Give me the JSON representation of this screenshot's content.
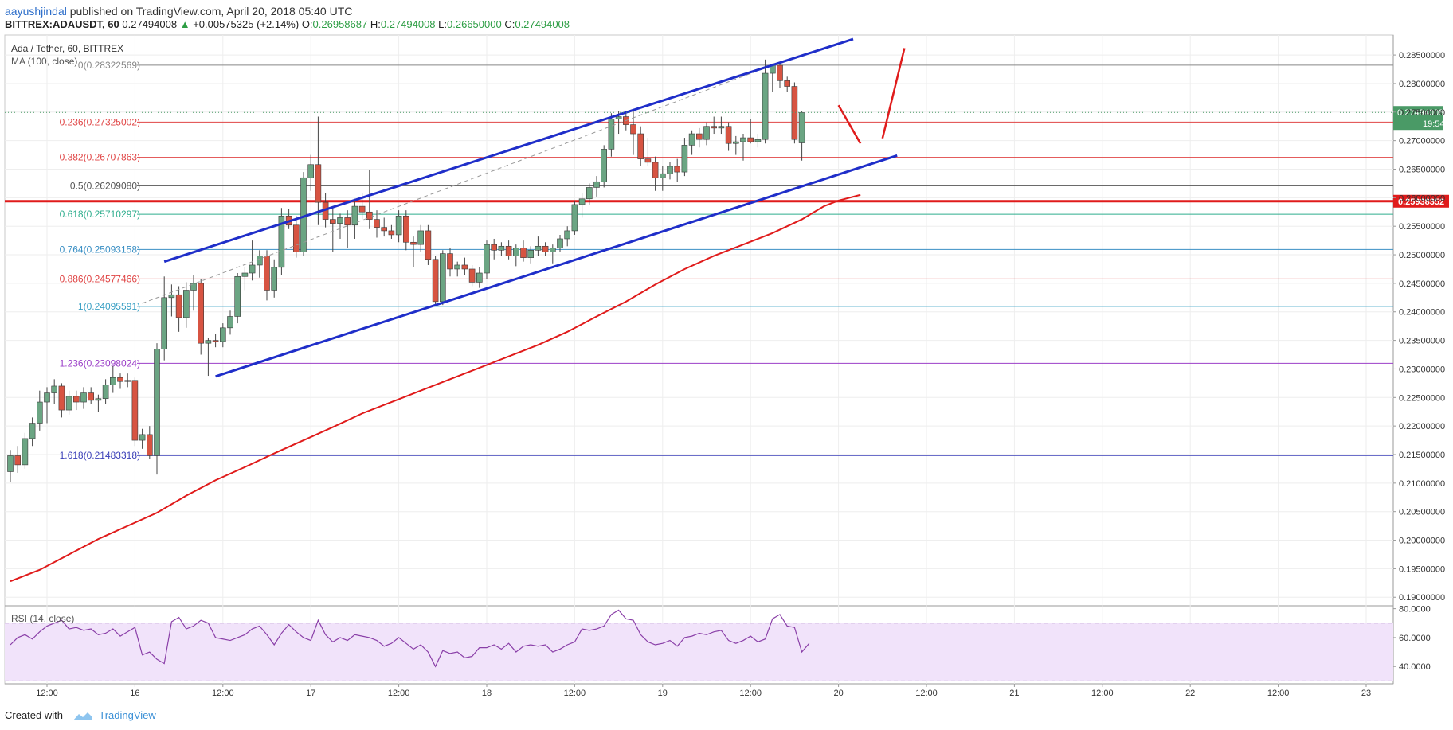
{
  "header": {
    "author": "aayushjindal",
    "published_text": "published on TradingView.com, April 20, 2018 05:40 UTC",
    "symbol": "BITTREX:ADAUSDT, 60",
    "last": "0.27494008",
    "change": "+0.00575325 (+2.14%)",
    "o_label": "O:",
    "o_value": "0.26958687",
    "h_label": "H:",
    "h_value": "0.27494008",
    "l_label": "L:",
    "l_value": "0.26650000",
    "c_label": "C:",
    "c_value": "0.27494008"
  },
  "chart_data": {
    "type": "candlestick",
    "title": "Ada / Tether, 60, BITTREX",
    "indicator_label": "MA (100, close)",
    "ylim": [
      0.1885,
      0.2885
    ],
    "price_ticks": [
      0.285,
      0.28,
      0.275,
      0.27,
      0.265,
      0.26,
      0.255,
      0.25,
      0.245,
      0.24,
      0.235,
      0.23,
      0.225,
      0.22,
      0.215,
      0.21,
      0.205,
      0.2,
      0.195,
      0.19
    ],
    "price_tick_labels": [
      "0.28500000",
      "0.28000000",
      "0.27500000",
      "0.27000000",
      "0.26500000",
      "0.26000000",
      "0.25500000",
      "0.25000000",
      "0.24500000",
      "0.24000000",
      "0.23500000",
      "0.23000000",
      "0.22500000",
      "0.22000000",
      "0.21500000",
      "0.21000000",
      "0.20500000",
      "0.20000000",
      "0.19500000",
      "0.19000000"
    ],
    "x_range": [
      0,
      180
    ],
    "time_ticks": [
      {
        "x": 5,
        "label": "12:00"
      },
      {
        "x": 17,
        "label": "16"
      },
      {
        "x": 29,
        "label": "12:00"
      },
      {
        "x": 41,
        "label": "17"
      },
      {
        "x": 53,
        "label": "12:00"
      },
      {
        "x": 65,
        "label": "18"
      },
      {
        "x": 77,
        "label": "12:00"
      },
      {
        "x": 89,
        "label": "19"
      },
      {
        "x": 101,
        "label": "12:00"
      },
      {
        "x": 113,
        "label": "20"
      },
      {
        "x": 125,
        "label": "12:00"
      },
      {
        "x": 137,
        "label": "21"
      },
      {
        "x": 149,
        "label": "12:00"
      },
      {
        "x": 161,
        "label": "22"
      },
      {
        "x": 173,
        "label": "12:00"
      },
      {
        "x": 185,
        "label": "23"
      }
    ],
    "fib_levels": [
      {
        "ratio": "0",
        "value": 0.28322569,
        "label": "0(0.28322569)",
        "color": "#888888"
      },
      {
        "ratio": "0.236",
        "value": 0.27325002,
        "label": "0.236(0.27325002)",
        "color": "#e04545"
      },
      {
        "ratio": "0.382",
        "value": 0.26707863,
        "label": "0.382(0.26707863)",
        "color": "#e04545"
      },
      {
        "ratio": "0.5",
        "value": 0.2620908,
        "label": "0.5(0.26209080)",
        "color": "#555555"
      },
      {
        "ratio": "0.618",
        "value": 0.25710297,
        "label": "0.618(0.25710297)",
        "color": "#2fae8e"
      },
      {
        "ratio": "0.764",
        "value": 0.25093158,
        "label": "0.764(0.25093158)",
        "color": "#3a8fc4"
      },
      {
        "ratio": "0.886",
        "value": 0.24577466,
        "label": "0.886(0.24577466)",
        "color": "#e04545"
      },
      {
        "ratio": "1",
        "value": 0.24095591,
        "label": "1(0.24095591)",
        "color": "#3aa0c4"
      },
      {
        "ratio": "1.236",
        "value": 0.23098024,
        "label": "1.236(0.23098024)",
        "color": "#9b3fc8"
      },
      {
        "ratio": "1.618",
        "value": 0.21483318,
        "label": "1.618(0.21483318)",
        "color": "#3a3fb8"
      }
    ],
    "support_line": {
      "value": 0.25938352,
      "label": "0.25938352",
      "color": "#e01b1b"
    },
    "last_price_badge": {
      "value": 0.27494008,
      "label": "0.27494008",
      "time": "19:54",
      "color": "#4a9a66"
    },
    "channel_lines": [
      {
        "x1": 21,
        "y1": 0.2488,
        "x2": 115,
        "y2": 0.2878
      },
      {
        "x1": 28,
        "y1": 0.2287,
        "x2": 121,
        "y2": 0.2674
      }
    ],
    "projection_lines": [
      {
        "x1": 113,
        "y1": 0.2762,
        "x2": 116,
        "y2": 0.2695
      },
      {
        "x1": 119,
        "y1": 0.2704,
        "x2": 122,
        "y2": 0.2862
      }
    ],
    "dashed_line": {
      "x1": 18,
      "y1": 0.2415,
      "x2": 105,
      "y2": 0.2837
    },
    "candles": [
      [
        0.212,
        0.2158,
        0.2102,
        0.2148
      ],
      [
        0.2148,
        0.2165,
        0.2118,
        0.2132
      ],
      [
        0.2132,
        0.2188,
        0.2125,
        0.2178
      ],
      [
        0.2178,
        0.2215,
        0.2165,
        0.2205
      ],
      [
        0.2205,
        0.2262,
        0.2192,
        0.2242
      ],
      [
        0.2242,
        0.2268,
        0.2205,
        0.2258
      ],
      [
        0.2258,
        0.2282,
        0.2238,
        0.227
      ],
      [
        0.227,
        0.2275,
        0.2215,
        0.2228
      ],
      [
        0.2228,
        0.2262,
        0.222,
        0.2252
      ],
      [
        0.2252,
        0.2262,
        0.2228,
        0.2242
      ],
      [
        0.2242,
        0.2268,
        0.223,
        0.2258
      ],
      [
        0.2258,
        0.2268,
        0.2238,
        0.2245
      ],
      [
        0.2245,
        0.2255,
        0.2225,
        0.2248
      ],
      [
        0.2248,
        0.2282,
        0.2238,
        0.2272
      ],
      [
        0.2272,
        0.2305,
        0.2258,
        0.2285
      ],
      [
        0.2285,
        0.2292,
        0.2265,
        0.2278
      ],
      [
        0.2278,
        0.2292,
        0.2268,
        0.228
      ],
      [
        0.228,
        0.2285,
        0.2165,
        0.2175
      ],
      [
        0.2175,
        0.2195,
        0.216,
        0.2185
      ],
      [
        0.2185,
        0.22,
        0.2142,
        0.2148
      ],
      [
        0.2148,
        0.2345,
        0.2115,
        0.2335
      ],
      [
        0.2335,
        0.2462,
        0.2315,
        0.2425
      ],
      [
        0.2425,
        0.2448,
        0.2392,
        0.243
      ],
      [
        0.243,
        0.2445,
        0.2365,
        0.239
      ],
      [
        0.239,
        0.2452,
        0.2372,
        0.2438
      ],
      [
        0.2438,
        0.2465,
        0.2402,
        0.245
      ],
      [
        0.245,
        0.2458,
        0.2325,
        0.2345
      ],
      [
        0.2345,
        0.2355,
        0.2288,
        0.235
      ],
      [
        0.235,
        0.2362,
        0.2338,
        0.2348
      ],
      [
        0.2348,
        0.238,
        0.2338,
        0.2372
      ],
      [
        0.2372,
        0.2402,
        0.236,
        0.2392
      ],
      [
        0.2392,
        0.2468,
        0.238,
        0.2462
      ],
      [
        0.2462,
        0.2478,
        0.2438,
        0.2468
      ],
      [
        0.2468,
        0.2525,
        0.2455,
        0.2482
      ],
      [
        0.2482,
        0.2508,
        0.246,
        0.2498
      ],
      [
        0.2498,
        0.2508,
        0.242,
        0.2438
      ],
      [
        0.2438,
        0.2492,
        0.2425,
        0.2478
      ],
      [
        0.2478,
        0.2582,
        0.2465,
        0.2568
      ],
      [
        0.2568,
        0.258,
        0.2545,
        0.2552
      ],
      [
        0.2552,
        0.2568,
        0.2495,
        0.2505
      ],
      [
        0.2505,
        0.2645,
        0.2498,
        0.2635
      ],
      [
        0.2635,
        0.2675,
        0.2612,
        0.2658
      ],
      [
        0.2658,
        0.2742,
        0.2552,
        0.2592
      ],
      [
        0.2592,
        0.2608,
        0.2548,
        0.2562
      ],
      [
        0.2562,
        0.2582,
        0.2505,
        0.2555
      ],
      [
        0.2555,
        0.2572,
        0.2528,
        0.2565
      ],
      [
        0.2565,
        0.2578,
        0.2512,
        0.2552
      ],
      [
        0.2552,
        0.2598,
        0.2528,
        0.2585
      ],
      [
        0.2585,
        0.2608,
        0.2562,
        0.2575
      ],
      [
        0.2575,
        0.2648,
        0.2545,
        0.2562
      ],
      [
        0.2562,
        0.2578,
        0.253,
        0.2548
      ],
      [
        0.2548,
        0.2565,
        0.2532,
        0.2542
      ],
      [
        0.2542,
        0.2552,
        0.2528,
        0.2535
      ],
      [
        0.2535,
        0.2578,
        0.2522,
        0.2568
      ],
      [
        0.2568,
        0.2578,
        0.2508,
        0.2522
      ],
      [
        0.2522,
        0.2532,
        0.2478,
        0.2518
      ],
      [
        0.2518,
        0.2552,
        0.2505,
        0.2542
      ],
      [
        0.2542,
        0.2552,
        0.2482,
        0.2492
      ],
      [
        0.2492,
        0.2498,
        0.2412,
        0.2418
      ],
      [
        0.2418,
        0.2508,
        0.2412,
        0.2502
      ],
      [
        0.2502,
        0.2512,
        0.2462,
        0.2475
      ],
      [
        0.2475,
        0.2488,
        0.2462,
        0.2482
      ],
      [
        0.2482,
        0.2495,
        0.2465,
        0.2475
      ],
      [
        0.2475,
        0.2482,
        0.2445,
        0.2452
      ],
      [
        0.2452,
        0.2478,
        0.2442,
        0.2468
      ],
      [
        0.2468,
        0.2525,
        0.2458,
        0.2518
      ],
      [
        0.2518,
        0.2528,
        0.2492,
        0.2508
      ],
      [
        0.2508,
        0.2522,
        0.2498,
        0.2515
      ],
      [
        0.2515,
        0.2525,
        0.2492,
        0.2498
      ],
      [
        0.2498,
        0.2518,
        0.248,
        0.2512
      ],
      [
        0.2512,
        0.2525,
        0.2488,
        0.2495
      ],
      [
        0.2495,
        0.2515,
        0.2485,
        0.2508
      ],
      [
        0.2508,
        0.2532,
        0.2498,
        0.2515
      ],
      [
        0.2515,
        0.2522,
        0.2498,
        0.2505
      ],
      [
        0.2505,
        0.2518,
        0.2485,
        0.2512
      ],
      [
        0.2512,
        0.2535,
        0.2505,
        0.2528
      ],
      [
        0.2528,
        0.255,
        0.2515,
        0.2542
      ],
      [
        0.2542,
        0.2595,
        0.2535,
        0.2588
      ],
      [
        0.2588,
        0.2608,
        0.2565,
        0.2598
      ],
      [
        0.2598,
        0.2625,
        0.2588,
        0.2618
      ],
      [
        0.2618,
        0.2638,
        0.2602,
        0.2628
      ],
      [
        0.2628,
        0.2692,
        0.2618,
        0.2685
      ],
      [
        0.2685,
        0.2748,
        0.2672,
        0.2738
      ],
      [
        0.2738,
        0.2752,
        0.2712,
        0.2742
      ],
      [
        0.2742,
        0.2752,
        0.2718,
        0.2728
      ],
      [
        0.2728,
        0.2755,
        0.2675,
        0.2712
      ],
      [
        0.2712,
        0.2725,
        0.2655,
        0.2668
      ],
      [
        0.2668,
        0.2705,
        0.2655,
        0.2662
      ],
      [
        0.2662,
        0.2672,
        0.2612,
        0.2635
      ],
      [
        0.2635,
        0.2655,
        0.2612,
        0.2642
      ],
      [
        0.2642,
        0.2662,
        0.2632,
        0.2655
      ],
      [
        0.2655,
        0.2668,
        0.2628,
        0.2645
      ],
      [
        0.2645,
        0.2705,
        0.2638,
        0.2692
      ],
      [
        0.2692,
        0.2718,
        0.2675,
        0.2712
      ],
      [
        0.2712,
        0.2722,
        0.2688,
        0.2702
      ],
      [
        0.2702,
        0.2732,
        0.2692,
        0.2725
      ],
      [
        0.2725,
        0.2742,
        0.2712,
        0.2722
      ],
      [
        0.2722,
        0.2742,
        0.2712,
        0.2725
      ],
      [
        0.2725,
        0.2732,
        0.2682,
        0.2695
      ],
      [
        0.2695,
        0.2708,
        0.2675,
        0.2698
      ],
      [
        0.2698,
        0.2712,
        0.2665,
        0.2705
      ],
      [
        0.2705,
        0.2738,
        0.2695,
        0.2698
      ],
      [
        0.2698,
        0.2712,
        0.2688,
        0.2702
      ],
      [
        0.2702,
        0.2842,
        0.2695,
        0.2818
      ],
      [
        0.2818,
        0.2835,
        0.2785,
        0.2832
      ],
      [
        0.2832,
        0.2838,
        0.2792,
        0.2805
      ],
      [
        0.2805,
        0.2812,
        0.2785,
        0.2795
      ],
      [
        0.2795,
        0.2802,
        0.2695,
        0.2702
      ],
      [
        0.2696,
        0.2752,
        0.2665,
        0.2749
      ]
    ],
    "ma100": [
      [
        0,
        0.1928
      ],
      [
        4,
        0.1948
      ],
      [
        8,
        0.1975
      ],
      [
        12,
        0.2002
      ],
      [
        16,
        0.2025
      ],
      [
        20,
        0.2048
      ],
      [
        24,
        0.2078
      ],
      [
        28,
        0.2105
      ],
      [
        32,
        0.2128
      ],
      [
        36,
        0.2152
      ],
      [
        40,
        0.2175
      ],
      [
        44,
        0.2198
      ],
      [
        48,
        0.2222
      ],
      [
        52,
        0.2242
      ],
      [
        56,
        0.2262
      ],
      [
        60,
        0.2282
      ],
      [
        64,
        0.2302
      ],
      [
        68,
        0.2322
      ],
      [
        72,
        0.2342
      ],
      [
        76,
        0.2365
      ],
      [
        80,
        0.2392
      ],
      [
        84,
        0.2418
      ],
      [
        88,
        0.2448
      ],
      [
        92,
        0.2475
      ],
      [
        96,
        0.2498
      ],
      [
        100,
        0.2518
      ],
      [
        104,
        0.2538
      ],
      [
        108,
        0.2562
      ],
      [
        111,
        0.2585
      ],
      [
        113,
        0.2595
      ],
      [
        116,
        0.2605
      ]
    ],
    "rsi": {
      "label": "RSI (14, close)",
      "ylim": [
        28,
        82
      ],
      "ticks": [
        80,
        60,
        40
      ],
      "tick_labels": [
        "80.0000",
        "60.0000",
        "40.0000"
      ],
      "band": [
        30,
        70
      ],
      "values": [
        55,
        60,
        62,
        59,
        64,
        68,
        70,
        72,
        66,
        67,
        65,
        66,
        62,
        63,
        66,
        61,
        64,
        67,
        48,
        50,
        45,
        42,
        71,
        74,
        66,
        68,
        72,
        70,
        60,
        59,
        58,
        60,
        62,
        66,
        68,
        62,
        55,
        63,
        69,
        64,
        60,
        58,
        72,
        62,
        57,
        60,
        58,
        62,
        61,
        60,
        58,
        54,
        56,
        60,
        56,
        52,
        55,
        50,
        40,
        51,
        49,
        50,
        46,
        47,
        53,
        53,
        55,
        52,
        56,
        50,
        54,
        55,
        54,
        55,
        50,
        52,
        55,
        57,
        66,
        65,
        66,
        68,
        76,
        79,
        73,
        72,
        62,
        57,
        55,
        56,
        58,
        54,
        60,
        61,
        63,
        62,
        64,
        65,
        58,
        56,
        58,
        61,
        57,
        59,
        73,
        76,
        68,
        67,
        50,
        56
      ]
    }
  },
  "footer": {
    "created_with": "Created with",
    "brand": "TradingView"
  }
}
